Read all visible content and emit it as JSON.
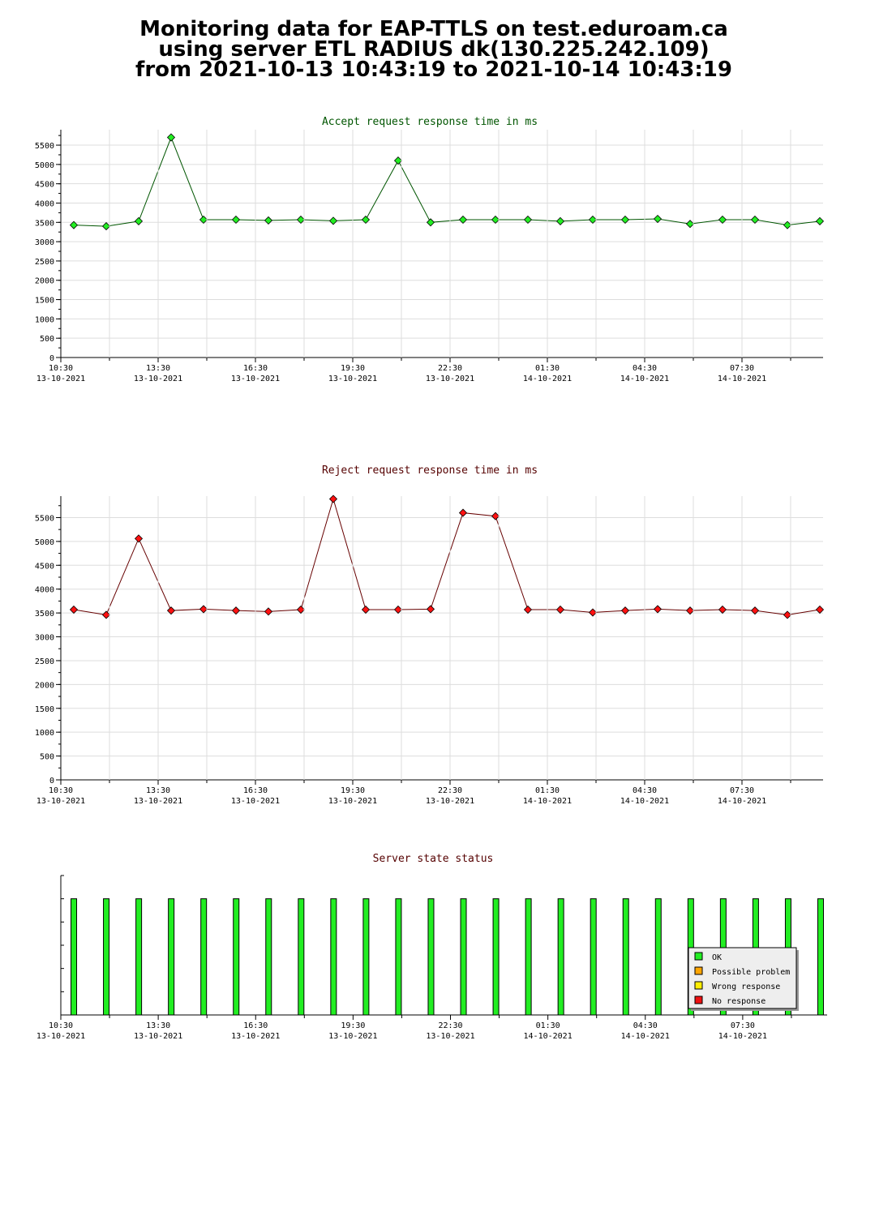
{
  "page_title": {
    "line1": "Monitoring data for EAP-TTLS on test.eduroam.ca",
    "line2": "using server ETL RADIUS dk(130.225.242.109)",
    "line3": "from 2021-10-13 10:43:19 to 2021-10-14 10:43:19"
  },
  "colors": {
    "accept_title": "#005500",
    "reject_title": "#550000",
    "status_title": "#550000",
    "accept_marker": "#22ee22",
    "reject_marker": "#ff1111",
    "accept_line": "#005500",
    "reject_line": "#660000",
    "ok": "#22ee22",
    "possible_problem": "#ffa500",
    "wrong_response": "#ffee00",
    "no_response": "#ee1111"
  },
  "chart_data": [
    {
      "type": "line",
      "title": "Accept request response time in ms",
      "xlabel": "",
      "ylabel": "",
      "x_ticks": [
        {
          "time": "10:30",
          "date": "13-10-2021"
        },
        {
          "time": "13:30",
          "date": "13-10-2021"
        },
        {
          "time": "16:30",
          "date": "13-10-2021"
        },
        {
          "time": "19:30",
          "date": "13-10-2021"
        },
        {
          "time": "22:30",
          "date": "13-10-2021"
        },
        {
          "time": "01:30",
          "date": "14-10-2021"
        },
        {
          "time": "04:30",
          "date": "14-10-2021"
        },
        {
          "time": "07:30",
          "date": "14-10-2021"
        }
      ],
      "y_ticks": [
        0,
        500,
        1000,
        1500,
        2000,
        2500,
        3000,
        3500,
        4000,
        4500,
        5000,
        5500
      ],
      "ylim": [
        0,
        5900
      ],
      "xlim_hours": [
        10.5,
        34.0
      ],
      "grid": true,
      "x_hours": [
        10.9,
        11.9,
        12.9,
        13.9,
        14.9,
        15.9,
        16.9,
        17.9,
        18.9,
        19.9,
        20.9,
        21.9,
        22.9,
        23.9,
        24.9,
        25.9,
        26.9,
        27.9,
        28.9,
        29.9,
        30.9,
        31.9,
        32.9,
        33.9
      ],
      "values": [
        3430,
        3400,
        3530,
        5700,
        3570,
        3570,
        3550,
        3570,
        3540,
        3570,
        5100,
        3500,
        3570,
        3570,
        3570,
        3530,
        3570,
        3570,
        3590,
        3460,
        3570,
        3570,
        3430,
        3530
      ]
    },
    {
      "type": "line",
      "title": "Reject request response time in ms",
      "xlabel": "",
      "ylabel": "",
      "x_ticks": [
        {
          "time": "10:30",
          "date": "13-10-2021"
        },
        {
          "time": "13:30",
          "date": "13-10-2021"
        },
        {
          "time": "16:30",
          "date": "13-10-2021"
        },
        {
          "time": "19:30",
          "date": "13-10-2021"
        },
        {
          "time": "22:30",
          "date": "13-10-2021"
        },
        {
          "time": "01:30",
          "date": "14-10-2021"
        },
        {
          "time": "04:30",
          "date": "14-10-2021"
        },
        {
          "time": "07:30",
          "date": "14-10-2021"
        }
      ],
      "y_ticks": [
        0,
        500,
        1000,
        1500,
        2000,
        2500,
        3000,
        3500,
        4000,
        4500,
        5000,
        5500
      ],
      "ylim": [
        0,
        5950
      ],
      "xlim_hours": [
        10.5,
        34.0
      ],
      "grid": true,
      "x_hours": [
        10.9,
        11.9,
        12.9,
        13.9,
        14.9,
        15.9,
        16.9,
        17.9,
        18.9,
        19.9,
        20.9,
        21.9,
        22.9,
        23.9,
        24.9,
        25.9,
        26.9,
        27.9,
        28.9,
        29.9,
        30.9,
        31.9,
        32.9,
        33.9
      ],
      "values": [
        3570,
        3460,
        5060,
        3550,
        3580,
        3550,
        3530,
        3570,
        5890,
        3570,
        3570,
        3580,
        5600,
        5530,
        3570,
        3570,
        3510,
        3550,
        3580,
        3550,
        3570,
        3550,
        3460,
        3570
      ]
    },
    {
      "type": "bar",
      "title": "Server state status",
      "xlabel": "",
      "ylabel": "",
      "x_ticks": [
        {
          "time": "10:30",
          "date": "13-10-2021"
        },
        {
          "time": "13:30",
          "date": "13-10-2021"
        },
        {
          "time": "16:30",
          "date": "13-10-2021"
        },
        {
          "time": "19:30",
          "date": "13-10-2021"
        },
        {
          "time": "22:30",
          "date": "13-10-2021"
        },
        {
          "time": "01:30",
          "date": "14-10-2021"
        },
        {
          "time": "04:30",
          "date": "14-10-2021"
        },
        {
          "time": "07:30",
          "date": "14-10-2021"
        }
      ],
      "xlim_hours": [
        10.5,
        34.1
      ],
      "x_hours": [
        10.9,
        11.9,
        12.9,
        13.9,
        14.9,
        15.9,
        16.9,
        17.9,
        18.9,
        19.9,
        20.9,
        21.9,
        22.9,
        23.9,
        24.9,
        25.9,
        26.9,
        27.9,
        28.9,
        29.9,
        30.9,
        31.9,
        32.9,
        33.9
      ],
      "states": [
        "OK",
        "OK",
        "OK",
        "OK",
        "OK",
        "OK",
        "OK",
        "OK",
        "OK",
        "OK",
        "OK",
        "OK",
        "OK",
        "OK",
        "OK",
        "OK",
        "OK",
        "OK",
        "OK",
        "OK",
        "OK",
        "OK",
        "OK",
        "OK"
      ],
      "legend_position": "bottom-right",
      "legend": [
        {
          "label": "OK",
          "color_key": "ok"
        },
        {
          "label": "Possible problem",
          "color_key": "possible_problem"
        },
        {
          "label": "Wrong response",
          "color_key": "wrong_response"
        },
        {
          "label": "No response",
          "color_key": "no_response"
        }
      ]
    }
  ]
}
